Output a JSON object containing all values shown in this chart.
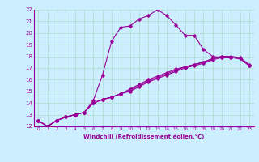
{
  "xlabel": "Windchill (Refroidissement éolien,°C)",
  "bg_color": "#cceeff",
  "grid_color": "#aaddcc",
  "line_color": "#990099",
  "xlim": [
    -0.5,
    23.5
  ],
  "ylim": [
    12,
    22
  ],
  "xticks": [
    0,
    1,
    2,
    3,
    4,
    5,
    6,
    7,
    8,
    9,
    10,
    11,
    12,
    13,
    14,
    15,
    16,
    17,
    18,
    19,
    20,
    21,
    22,
    23
  ],
  "yticks": [
    12,
    13,
    14,
    15,
    16,
    17,
    18,
    19,
    20,
    21,
    22
  ],
  "series": [
    [
      12.5,
      12.0,
      12.5,
      12.8,
      13.0,
      13.2,
      14.2,
      16.4,
      19.3,
      20.5,
      20.6,
      21.2,
      21.5,
      22.0,
      21.5,
      20.7,
      19.8,
      19.8,
      18.6,
      18.0,
      17.9,
      17.9,
      null,
      null
    ],
    [
      12.5,
      12.0,
      12.5,
      12.8,
      13.0,
      13.2,
      14.0,
      14.3,
      14.5,
      14.8,
      15.2,
      15.6,
      16.0,
      16.3,
      16.6,
      16.9,
      17.1,
      17.3,
      17.5,
      17.8,
      18.0,
      18.0,
      17.9,
      17.3
    ],
    [
      12.5,
      12.0,
      12.5,
      12.8,
      13.0,
      13.2,
      14.0,
      14.3,
      14.5,
      14.8,
      15.0,
      15.4,
      15.8,
      16.1,
      16.4,
      16.7,
      17.0,
      17.2,
      17.4,
      17.7,
      17.9,
      17.9,
      17.8,
      17.2
    ],
    [
      12.5,
      12.0,
      12.5,
      12.8,
      13.0,
      13.2,
      14.0,
      14.3,
      14.5,
      14.8,
      15.1,
      15.5,
      15.9,
      16.2,
      16.5,
      16.8,
      17.1,
      17.3,
      17.5,
      17.8,
      18.0,
      17.9,
      17.8,
      17.2
    ]
  ]
}
